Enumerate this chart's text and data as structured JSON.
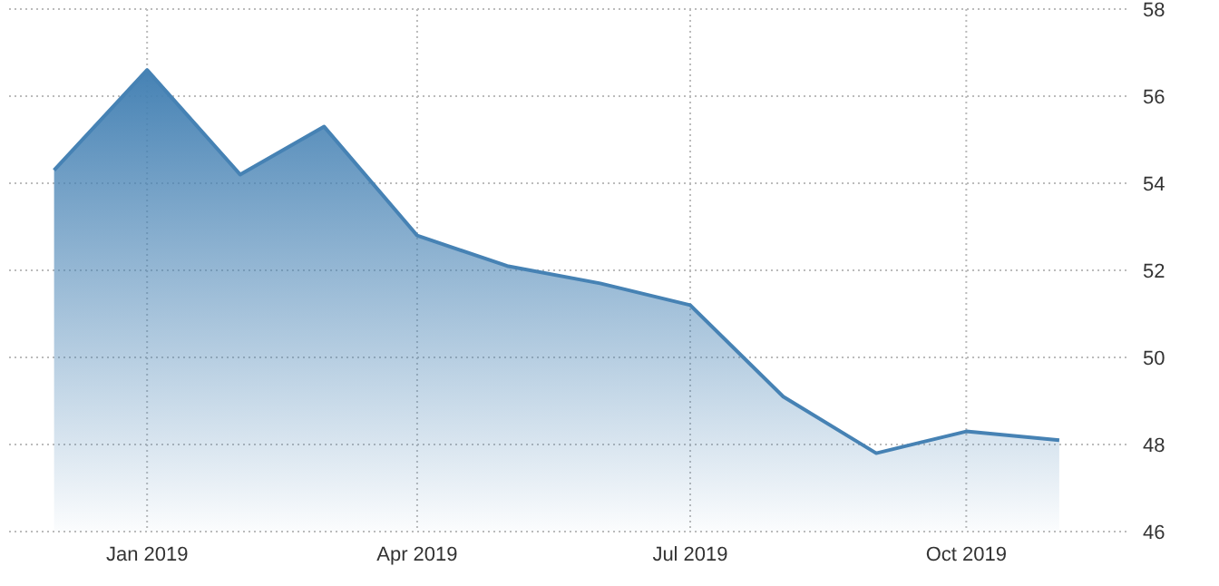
{
  "chart_data": {
    "type": "area",
    "x": [
      "2018-12",
      "2019-01",
      "2019-02",
      "2019-03",
      "2019-04",
      "2019-05",
      "2019-06",
      "2019-07",
      "2019-08",
      "2019-09",
      "2019-10",
      "2019-11"
    ],
    "series": [
      {
        "color": "#4682b4",
        "values": [
          54.3,
          56.6,
          54.2,
          55.3,
          52.8,
          52.1,
          51.7,
          51.2,
          49.1,
          47.8,
          48.3,
          48.1
        ]
      }
    ],
    "xlim": [
      "2018-11-16",
      "2019-11-24"
    ],
    "xticks": [
      {
        "value": "2019-01",
        "label": "Jan 2019"
      },
      {
        "value": "2019-04",
        "label": "Apr 2019"
      },
      {
        "value": "2019-07",
        "label": "Jul 2019"
      },
      {
        "value": "2019-10",
        "label": "Oct 2019"
      }
    ],
    "ylim": [
      46,
      58
    ],
    "yticks": [
      46,
      48,
      50,
      52,
      54,
      56,
      58
    ],
    "grid": true,
    "legend": false,
    "marker": "none",
    "line_style": "solid"
  }
}
